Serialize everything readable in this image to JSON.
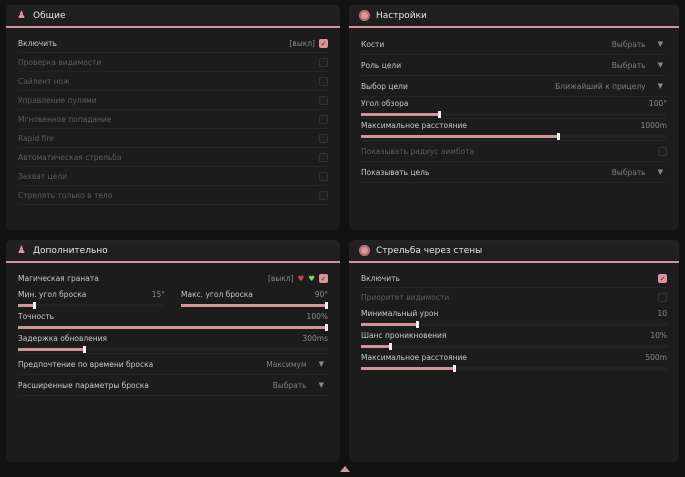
{
  "accent": "#d9959b",
  "general": {
    "title": "Общие",
    "icon": "user-group-icon",
    "items": [
      {
        "label": "Включить",
        "state": "[выкл]",
        "checked": true,
        "enabled": true
      },
      {
        "label": "Проверка видимости",
        "checked": false,
        "enabled": false
      },
      {
        "label": "Сайлент нож",
        "checked": false,
        "enabled": false
      },
      {
        "label": "Управление пулями",
        "checked": false,
        "enabled": false
      },
      {
        "label": "Мгновенное попадание",
        "checked": false,
        "enabled": false
      },
      {
        "label": "Rapid fire",
        "checked": false,
        "enabled": false
      },
      {
        "label": "Автоматическая стрельба",
        "checked": false,
        "enabled": false
      },
      {
        "label": "Захват цели",
        "checked": false,
        "enabled": false
      },
      {
        "label": "Стрелять только в тело",
        "checked": false,
        "enabled": false
      }
    ]
  },
  "settings": {
    "title": "Настройки",
    "icon": "flower-icon",
    "bones": {
      "label": "Кости",
      "value": "Выбрать"
    },
    "target_role": {
      "label": "Роль цели",
      "value": "Выбрать"
    },
    "target_select": {
      "label": "Выбор цели",
      "value": "Ближайший к прицелу"
    },
    "fov": {
      "label": "Угол обзора",
      "value": "100°",
      "fraction": 0.26
    },
    "max_dist": {
      "label": "Максимальное расстояние",
      "value": "1000m",
      "fraction": 0.65
    },
    "show_radius": {
      "label": "Показывать радиус аимбота",
      "checked": false
    },
    "show_target": {
      "label": "Показывать цель",
      "value": "Выбрать"
    }
  },
  "extra": {
    "title": "Дополнительно",
    "icon": "user-group-icon",
    "magic_grenade": {
      "label": "Магическая граната",
      "state": "[выкл]",
      "checked": true
    },
    "min_angle": {
      "label": "Мин. угол броска",
      "value": "15°",
      "fraction": 0.12
    },
    "max_angle": {
      "label": "Макс. угол броска",
      "value": "90°",
      "fraction": 1.0
    },
    "accuracy": {
      "label": "Точность",
      "value": "100%",
      "fraction": 1.0
    },
    "delay": {
      "label": "Задержка обновления",
      "value": "300ms",
      "fraction": 0.22
    },
    "throw_pref": {
      "label": "Предпочтение по времени броска",
      "value": "Максимум"
    },
    "throw_adv": {
      "label": "Расширенные параметры броска",
      "value": "Выбрать"
    }
  },
  "walls": {
    "title": "Стрельба через стены",
    "icon": "flower-icon",
    "enable": {
      "label": "Включить",
      "checked": true
    },
    "vis_priority": {
      "label": "Приоритет видимости",
      "checked": false
    },
    "min_damage": {
      "label": "Минимальный урон",
      "value": "10",
      "fraction": 0.19
    },
    "pen_chance": {
      "label": "Шанс проникновения",
      "value": "10%",
      "fraction": 0.1
    },
    "max_dist": {
      "label": "Максимальное расстояние",
      "value": "500m",
      "fraction": 0.31
    }
  }
}
